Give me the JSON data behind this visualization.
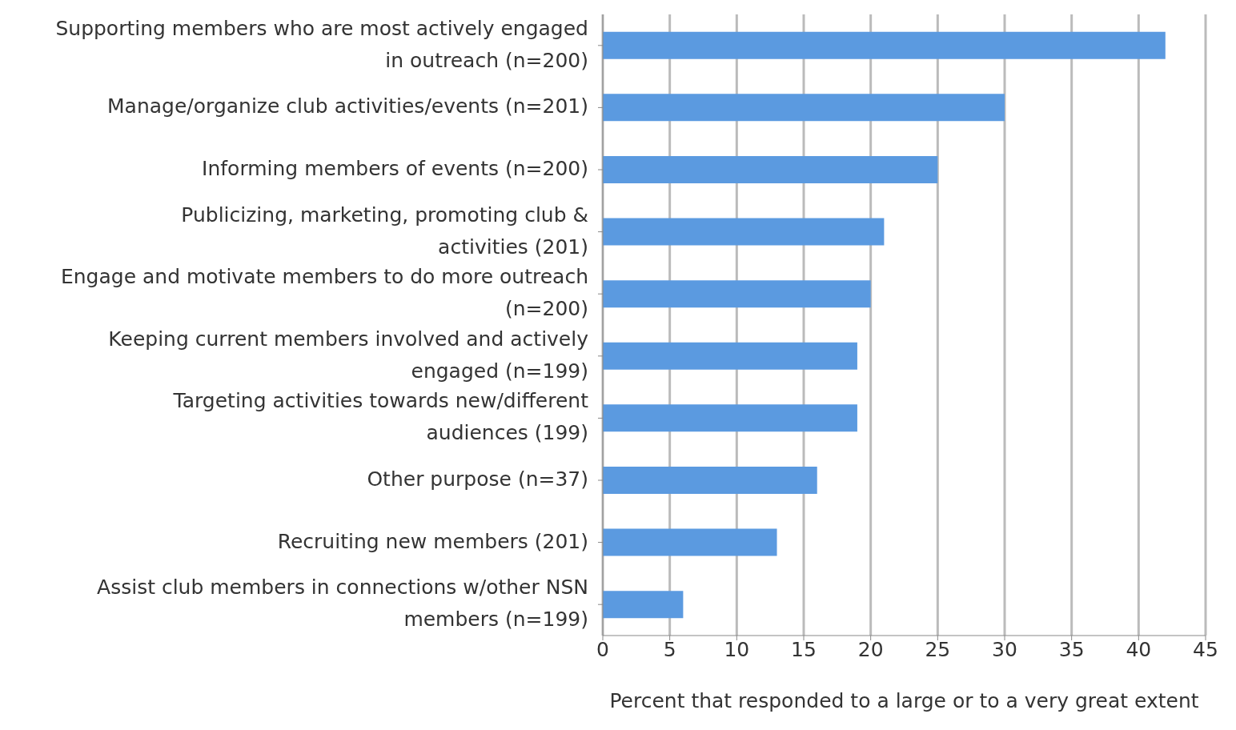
{
  "chart_data": {
    "type": "bar",
    "orientation": "horizontal",
    "categories": [
      "Supporting members who are most actively engaged in outreach (n=200)",
      "Manage/organize club activities/events (n=201)",
      "Informing members of events (n=200)",
      "Publicizing, marketing, promoting club & activities (201)",
      "Engage and motivate members to do more outreach (n=200)",
      "Keeping current members involved and actively engaged (n=199)",
      "Targeting activities towards new/different audiences (199)",
      "Other purpose (n=37)",
      "Recruiting new members (201)",
      "Assist club members in connections w/other NSN members (n=199)"
    ],
    "values": [
      42,
      30,
      25,
      21,
      20,
      19,
      19,
      16,
      13,
      6
    ],
    "color": "#5b9ae0",
    "xlim": [
      0,
      45
    ],
    "xticks": [
      0,
      5,
      10,
      15,
      20,
      25,
      30,
      35,
      40,
      45
    ],
    "xlabel": "Percent that responded to a large or to a very great extent",
    "grid": "x",
    "legend": false
  }
}
